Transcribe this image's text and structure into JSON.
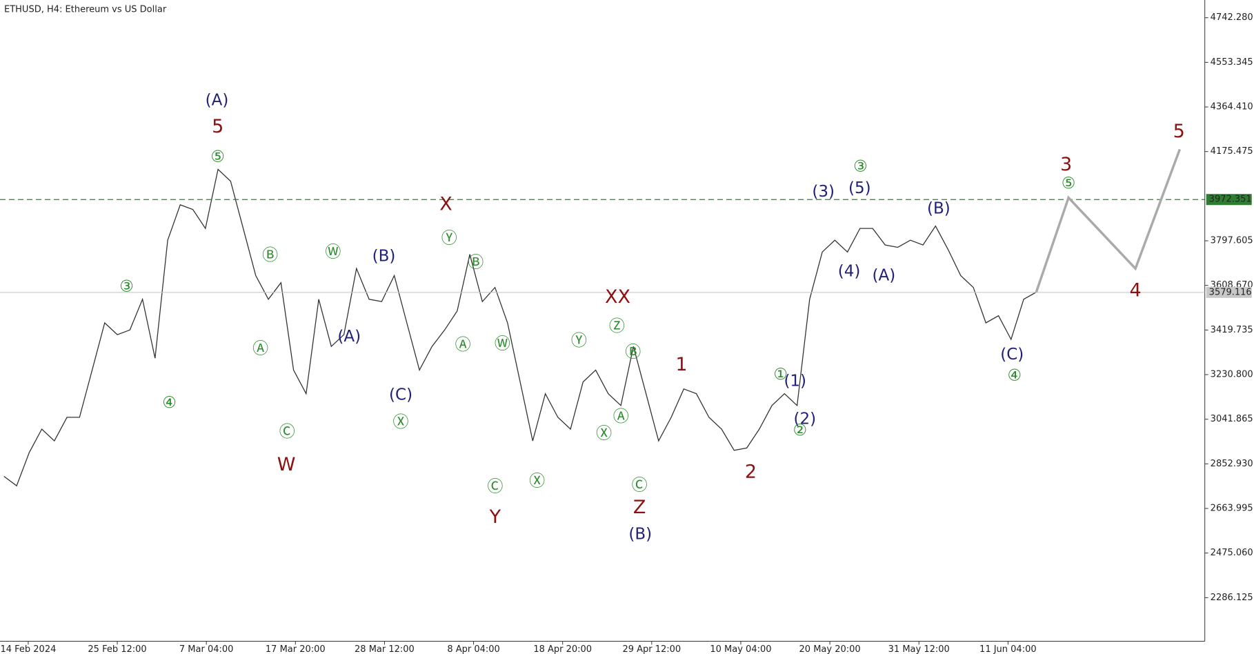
{
  "chart_data": {
    "type": "line",
    "title": "ETHUSD, H4:  Ethereum vs US Dollar",
    "color": "#333333",
    "values": [
      2800,
      2760,
      2900,
      3000,
      2950,
      3050,
      3050,
      3250,
      3450,
      3400,
      3420,
      3550,
      3300,
      3800,
      3950,
      3930,
      3850,
      4100,
      4050,
      3850,
      3650,
      3550,
      3620,
      3250,
      3150,
      3550,
      3350,
      3400,
      3680,
      3550,
      3540,
      3650,
      3450,
      3250,
      3350,
      3420,
      3500,
      3740,
      3540,
      3600,
      3450,
      3200,
      2950,
      3150,
      3050,
      3000,
      3200,
      3250,
      3150,
      3100,
      3350,
      3150,
      2950,
      3050,
      3170,
      3150,
      3050,
      3000,
      2910,
      2920,
      3000,
      3100,
      3150,
      3100,
      3550,
      3750,
      3800,
      3750,
      3850,
      3850,
      3780,
      3770,
      3800,
      3780,
      3860,
      3760,
      3650,
      3600,
      3450,
      3480,
      3380,
      3550,
      3580
    ],
    "projection": {
      "color": "#aaaaaa",
      "values": [
        3580,
        3980,
        3680,
        4185
      ]
    },
    "ylim": [
      2101.7,
      4817.4
    ],
    "yticks": [
      {
        "value": 4742.28,
        "label": "4742.280"
      },
      {
        "value": 4553.345,
        "label": "4553.345"
      },
      {
        "value": 4364.41,
        "label": "4364.410"
      },
      {
        "value": 4175.475,
        "label": "4175.475"
      },
      {
        "value": 3797.605,
        "label": "3797.605"
      },
      {
        "value": 3608.67,
        "label": "3608.670"
      },
      {
        "value": 3419.735,
        "label": "3419.735"
      },
      {
        "value": 3230.8,
        "label": "3230.800"
      },
      {
        "value": 3041.865,
        "label": "3041.865"
      },
      {
        "value": 2852.93,
        "label": "2852.930"
      },
      {
        "value": 2663.995,
        "label": "2663.995"
      },
      {
        "value": 2475.06,
        "label": "2475.060"
      },
      {
        "value": 2286.125,
        "label": "2286.125"
      }
    ],
    "levels": [
      {
        "value": 3972.351,
        "color": "#2e7d32",
        "dashed": true
      },
      {
        "value": 3579.116,
        "color": "#c8c8c8",
        "dashed": false
      }
    ],
    "xlabels": [
      "14 Feb 2024",
      "25 Feb 12:00",
      "7 Mar 04:00",
      "17 Mar 20:00",
      "28 Mar 12:00",
      "8 Apr 04:00",
      "18 Apr 20:00",
      "29 Apr 12:00",
      "10 May 04:00",
      "20 May 20:00",
      "31 May 12:00",
      "11 Jun 04:00"
    ],
    "annotations": [
      {
        "text": "(A)",
        "color": "#1f1f7a"
      },
      {
        "text": "5",
        "color": "#8b1010"
      },
      {
        "text": "⑤",
        "color": "#2e8b2e"
      },
      {
        "text": "③",
        "color": "#2e8b2e"
      },
      {
        "text": "④",
        "color": "#2e8b2e"
      },
      {
        "text": "Ⓑ",
        "color": "#2e8b2e"
      },
      {
        "text": "Ⓐ",
        "color": "#2e8b2e"
      },
      {
        "text": "Ⓒ",
        "color": "#2e8b2e"
      },
      {
        "text": "W",
        "color": "#8b1010"
      },
      {
        "text": "Ⓦ",
        "color": "#2e8b2e"
      },
      {
        "text": "(B)",
        "color": "#1f1f7a"
      },
      {
        "text": "(A)",
        "color": "#1f1f7a"
      },
      {
        "text": "(C)",
        "color": "#1f1f7a"
      },
      {
        "text": "Ⓧ",
        "color": "#2e8b2e"
      },
      {
        "text": "X",
        "color": "#8b1010"
      },
      {
        "text": "Ⓨ",
        "color": "#2e8b2e"
      },
      {
        "text": "Ⓑ",
        "color": "#2e8b2e"
      },
      {
        "text": "Ⓐ",
        "color": "#2e8b2e"
      },
      {
        "text": "Ⓦ",
        "color": "#2e8b2e"
      },
      {
        "text": "Ⓒ",
        "color": "#2e8b2e"
      },
      {
        "text": "Y",
        "color": "#8b1010"
      },
      {
        "text": "Ⓧ",
        "color": "#2e8b2e"
      },
      {
        "text": "Ⓨ",
        "color": "#2e8b2e"
      },
      {
        "text": "XX",
        "color": "#8b1010"
      },
      {
        "text": "Ⓩ",
        "color": "#2e8b2e"
      },
      {
        "text": "Ⓑ",
        "color": "#2e8b2e"
      },
      {
        "text": "Ⓐ",
        "color": "#2e8b2e"
      },
      {
        "text": "Ⓧ",
        "color": "#2e8b2e"
      },
      {
        "text": "Ⓒ",
        "color": "#2e8b2e"
      },
      {
        "text": "Z",
        "color": "#8b1010"
      },
      {
        "text": "(B)",
        "color": "#1f1f7a"
      },
      {
        "text": "1",
        "color": "#8b1010"
      },
      {
        "text": "2",
        "color": "#8b1010"
      },
      {
        "text": "①",
        "color": "#2e8b2e"
      },
      {
        "text": "(1)",
        "color": "#1f1f7a"
      },
      {
        "text": "(2)",
        "color": "#1f1f7a"
      },
      {
        "text": "②",
        "color": "#2e8b2e"
      },
      {
        "text": "(3)",
        "color": "#1f1f7a"
      },
      {
        "text": "③",
        "color": "#2e8b2e"
      },
      {
        "text": "(5)",
        "color": "#1f1f7a"
      },
      {
        "text": "(4)",
        "color": "#1f1f7a"
      },
      {
        "text": "(A)",
        "color": "#1f1f7a"
      },
      {
        "text": "(B)",
        "color": "#1f1f7a"
      },
      {
        "text": "(C)",
        "color": "#1f1f7a"
      },
      {
        "text": "④",
        "color": "#2e8b2e"
      },
      {
        "text": "3",
        "color": "#8b1010"
      },
      {
        "text": "⑤",
        "color": "#2e8b2e"
      },
      {
        "text": "4",
        "color": "#8b1010"
      },
      {
        "text": "5",
        "color": "#8b1010"
      }
    ]
  }
}
